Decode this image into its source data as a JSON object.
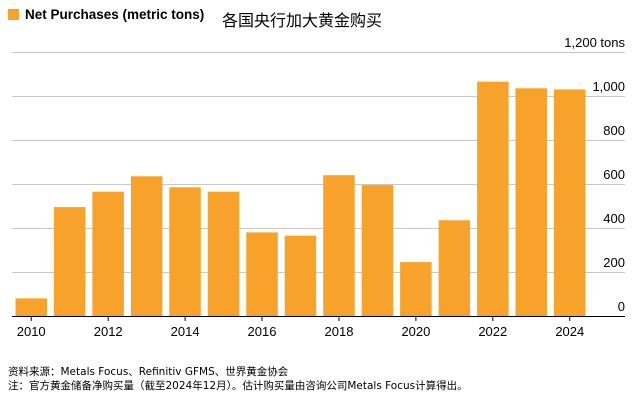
{
  "legend": {
    "label": "Net Purchases (metric tons)",
    "color": "#f7a22b"
  },
  "title_cn": "各国央行加大黄金购买",
  "footnotes": {
    "source": "资料来源：Metals Focus、Refinitiv GFMS、世界黄金协会",
    "note": "注：官方黄金储备净购买量（截至2024年12月）。估计购买量由咨询公司Metals Focus计算得出。"
  },
  "chart_data": {
    "type": "bar",
    "title": "各国央行加大黄金购买",
    "ylabel": "Net Purchases (metric tons)",
    "xlabel": "",
    "categories": [
      "2010",
      "2011",
      "2012",
      "2013",
      "2014",
      "2015",
      "2016",
      "2017",
      "2018",
      "2019",
      "2020",
      "2021",
      "2022",
      "2023",
      "2024"
    ],
    "values": [
      80,
      495,
      565,
      635,
      585,
      565,
      380,
      365,
      640,
      595,
      245,
      435,
      1065,
      1035,
      1030
    ],
    "x_tick_labels": [
      "2010",
      "2012",
      "2014",
      "2016",
      "2018",
      "2020",
      "2022",
      "2024"
    ],
    "y_ticks": [
      0,
      200,
      400,
      600,
      800,
      1000,
      1200
    ],
    "y_tick_labels": [
      "0",
      "200",
      "400",
      "600",
      "800",
      "1,000",
      "1,200 tons"
    ],
    "ylim": [
      0,
      1200
    ],
    "grid": true,
    "bar_color": "#f7a22b",
    "grid_color": "#c8c8c8"
  }
}
